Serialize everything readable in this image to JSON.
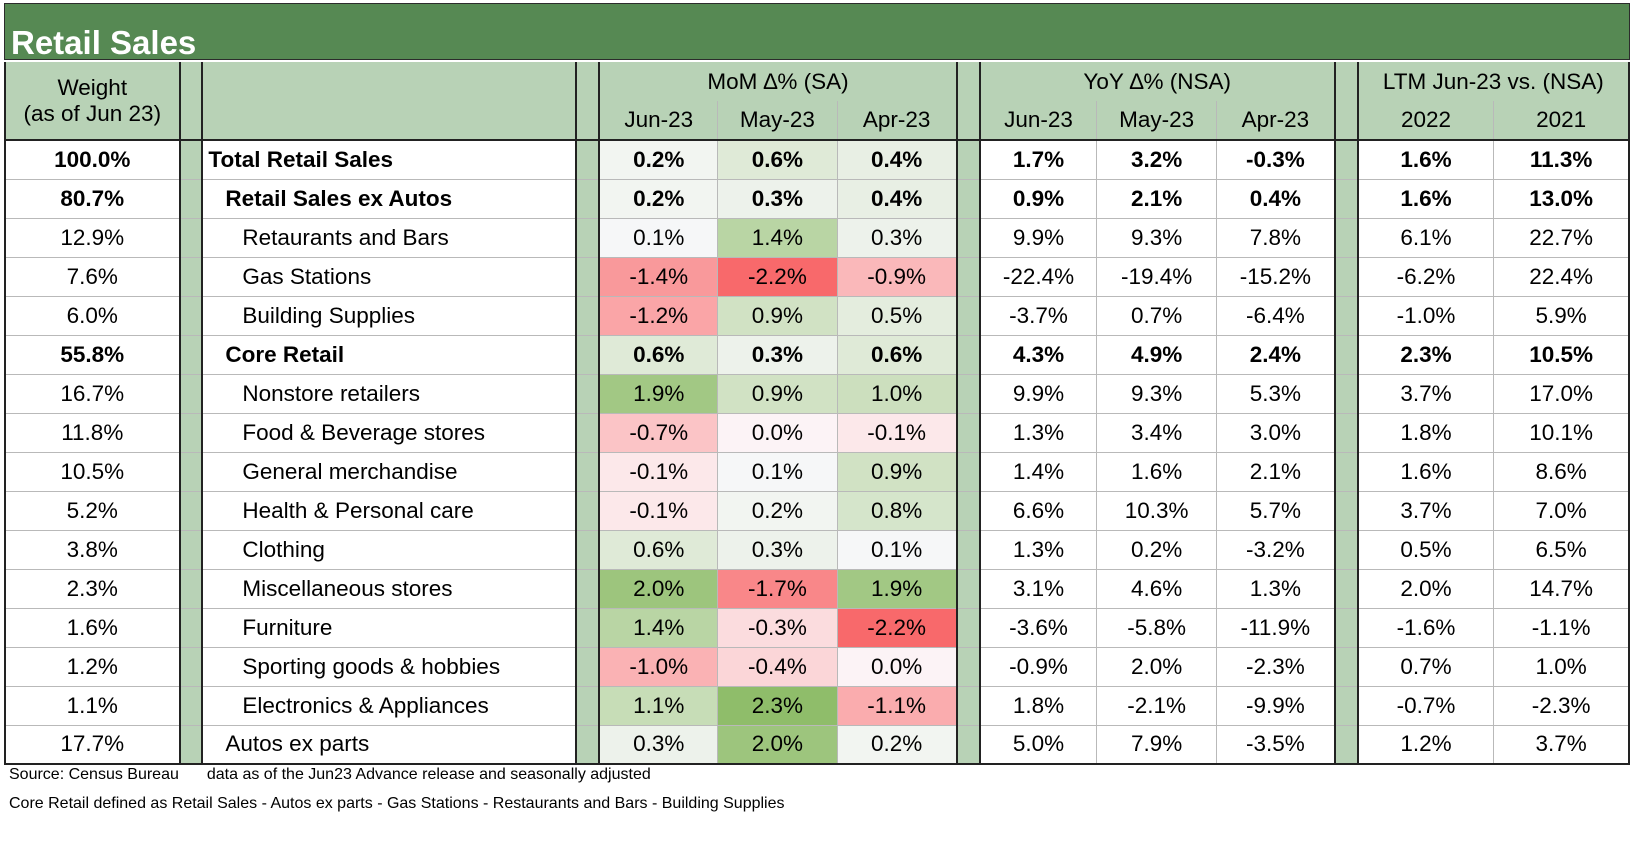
{
  "title": "Retail Sales",
  "header": {
    "weight_line1": "Weight",
    "weight_line2": "(as of Jun 23)",
    "mom_group": "MoM ∆% (SA)",
    "yoy_group": "YoY ∆% (NSA)",
    "ltm_group": "LTM Jun-23 vs. (NSA)",
    "mom_cols": [
      "Jun-23",
      "May-23",
      "Apr-23"
    ],
    "yoy_cols": [
      "Jun-23",
      "May-23",
      "Apr-23"
    ],
    "ltm_cols": [
      "2022",
      "2021"
    ]
  },
  "colors": {
    "title_bg": "#568953",
    "header_bg": "#b8d2b6",
    "heat_positive": "#8fbd88",
    "heat_negative": "#f8696b"
  },
  "rows": [
    {
      "weight": "100.0%",
      "label": "Total Retail Sales",
      "indent": 0,
      "bold": true,
      "mom": [
        "0.2%",
        "0.6%",
        "0.4%"
      ],
      "mom_v": [
        0.2,
        0.6,
        0.4
      ],
      "yoy": [
        "1.7%",
        "3.2%",
        "-0.3%"
      ],
      "ltm": [
        "1.6%",
        "11.3%"
      ]
    },
    {
      "weight": "80.7%",
      "label": "Retail Sales ex Autos",
      "indent": 1,
      "bold": true,
      "mom": [
        "0.2%",
        "0.3%",
        "0.4%"
      ],
      "mom_v": [
        0.2,
        0.3,
        0.4
      ],
      "yoy": [
        "0.9%",
        "2.1%",
        "0.4%"
      ],
      "ltm": [
        "1.6%",
        "13.0%"
      ]
    },
    {
      "weight": "12.9%",
      "label": "Retaurants and Bars",
      "indent": 2,
      "bold": false,
      "mom": [
        "0.1%",
        "1.4%",
        "0.3%"
      ],
      "mom_v": [
        0.1,
        1.4,
        0.3
      ],
      "yoy": [
        "9.9%",
        "9.3%",
        "7.8%"
      ],
      "ltm": [
        "6.1%",
        "22.7%"
      ]
    },
    {
      "weight": "7.6%",
      "label": "Gas Stations",
      "indent": 2,
      "bold": false,
      "mom": [
        "-1.4%",
        "-2.2%",
        "-0.9%"
      ],
      "mom_v": [
        -1.4,
        -2.2,
        -0.9
      ],
      "yoy": [
        "-22.4%",
        "-19.4%",
        "-15.2%"
      ],
      "ltm": [
        "-6.2%",
        "22.4%"
      ]
    },
    {
      "weight": "6.0%",
      "label": "Building Supplies",
      "indent": 2,
      "bold": false,
      "mom": [
        "-1.2%",
        "0.9%",
        "0.5%"
      ],
      "mom_v": [
        -1.2,
        0.9,
        0.5
      ],
      "yoy": [
        "-3.7%",
        "0.7%",
        "-6.4%"
      ],
      "ltm": [
        "-1.0%",
        "5.9%"
      ]
    },
    {
      "weight": "55.8%",
      "label": "Core Retail",
      "indent": 1,
      "bold": true,
      "mom": [
        "0.6%",
        "0.3%",
        "0.6%"
      ],
      "mom_v": [
        0.6,
        0.3,
        0.6
      ],
      "yoy": [
        "4.3%",
        "4.9%",
        "2.4%"
      ],
      "ltm": [
        "2.3%",
        "10.5%"
      ]
    },
    {
      "weight": "16.7%",
      "label": "Nonstore retailers",
      "indent": 2,
      "bold": false,
      "mom": [
        "1.9%",
        "0.9%",
        "1.0%"
      ],
      "mom_v": [
        1.9,
        0.9,
        1.0
      ],
      "yoy": [
        "9.9%",
        "9.3%",
        "5.3%"
      ],
      "ltm": [
        "3.7%",
        "17.0%"
      ]
    },
    {
      "weight": "11.8%",
      "label": "Food & Beverage stores",
      "indent": 2,
      "bold": false,
      "mom": [
        "-0.7%",
        "0.0%",
        "-0.1%"
      ],
      "mom_v": [
        -0.7,
        0.0,
        -0.1
      ],
      "yoy": [
        "1.3%",
        "3.4%",
        "3.0%"
      ],
      "ltm": [
        "1.8%",
        "10.1%"
      ]
    },
    {
      "weight": "10.5%",
      "label": "General merchandise",
      "indent": 2,
      "bold": false,
      "mom": [
        "-0.1%",
        "0.1%",
        "0.9%"
      ],
      "mom_v": [
        -0.1,
        0.1,
        0.9
      ],
      "yoy": [
        "1.4%",
        "1.6%",
        "2.1%"
      ],
      "ltm": [
        "1.6%",
        "8.6%"
      ]
    },
    {
      "weight": "5.2%",
      "label": "Health & Personal care",
      "indent": 2,
      "bold": false,
      "mom": [
        "-0.1%",
        "0.2%",
        "0.8%"
      ],
      "mom_v": [
        -0.1,
        0.2,
        0.8
      ],
      "yoy": [
        "6.6%",
        "10.3%",
        "5.7%"
      ],
      "ltm": [
        "3.7%",
        "7.0%"
      ]
    },
    {
      "weight": "3.8%",
      "label": "Clothing",
      "indent": 2,
      "bold": false,
      "mom": [
        "0.6%",
        "0.3%",
        "0.1%"
      ],
      "mom_v": [
        0.6,
        0.3,
        0.1
      ],
      "yoy": [
        "1.3%",
        "0.2%",
        "-3.2%"
      ],
      "ltm": [
        "0.5%",
        "6.5%"
      ]
    },
    {
      "weight": "2.3%",
      "label": "Miscellaneous stores",
      "indent": 2,
      "bold": false,
      "mom": [
        "2.0%",
        "-1.7%",
        "1.9%"
      ],
      "mom_v": [
        2.0,
        -1.7,
        1.9
      ],
      "yoy": [
        "3.1%",
        "4.6%",
        "1.3%"
      ],
      "ltm": [
        "2.0%",
        "14.7%"
      ]
    },
    {
      "weight": "1.6%",
      "label": "Furniture",
      "indent": 2,
      "bold": false,
      "mom": [
        "1.4%",
        "-0.3%",
        "-2.2%"
      ],
      "mom_v": [
        1.4,
        -0.3,
        -2.2
      ],
      "yoy": [
        "-3.6%",
        "-5.8%",
        "-11.9%"
      ],
      "ltm": [
        "-1.6%",
        "-1.1%"
      ]
    },
    {
      "weight": "1.2%",
      "label": "Sporting goods & hobbies",
      "indent": 2,
      "bold": false,
      "mom": [
        "-1.0%",
        "-0.4%",
        "0.0%"
      ],
      "mom_v": [
        -1.0,
        -0.4,
        0.0
      ],
      "yoy": [
        "-0.9%",
        "2.0%",
        "-2.3%"
      ],
      "ltm": [
        "0.7%",
        "1.0%"
      ]
    },
    {
      "weight": "1.1%",
      "label": "Electronics & Appliances",
      "indent": 2,
      "bold": false,
      "mom": [
        "1.1%",
        "2.3%",
        "-1.1%"
      ],
      "mom_v": [
        1.1,
        2.3,
        -1.1
      ],
      "yoy": [
        "1.8%",
        "-2.1%",
        "-9.9%"
      ],
      "ltm": [
        "-0.7%",
        "-2.3%"
      ]
    },
    {
      "weight": "17.7%",
      "label": "Autos ex parts",
      "indent": 1,
      "bold": false,
      "mom": [
        "0.3%",
        "2.0%",
        "0.2%"
      ],
      "mom_v": [
        0.3,
        2.0,
        0.2
      ],
      "yoy": [
        "5.0%",
        "7.9%",
        "-3.5%"
      ],
      "ltm": [
        "1.2%",
        "3.7%"
      ]
    }
  ],
  "footer": {
    "source": "Source: Census Bureau",
    "note1": "data as of the Jun23 Advance release and seasonally adjusted",
    "note2": "Core Retail defined as Retail Sales - Autos ex parts - Gas Stations - Restaurants and Bars - Building Supplies"
  }
}
